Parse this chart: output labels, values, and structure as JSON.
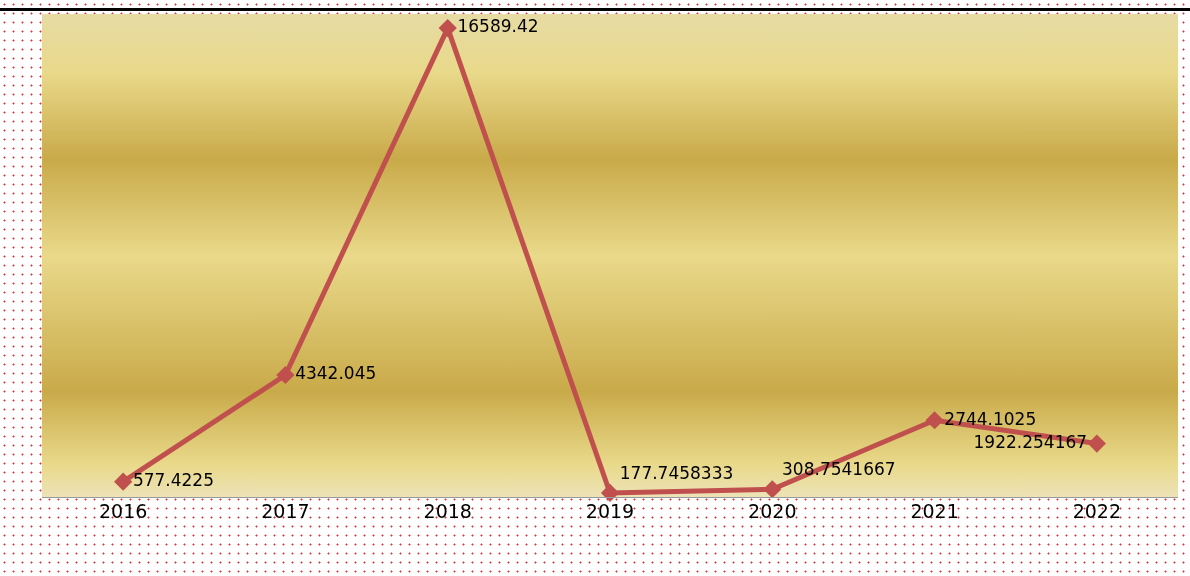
{
  "chart_data": {
    "type": "line",
    "categories": [
      "2016",
      "2017",
      "2018",
      "2019",
      "2020",
      "2021",
      "2022"
    ],
    "series": [
      {
        "color": "#c0504d",
        "values": [
          577.4225,
          4342.045,
          16589.42,
          177.7458333,
          308.7541667,
          2744.1025,
          1922.254167
        ]
      }
    ],
    "data_labels": true,
    "marker": "diamond",
    "line_style": "solid",
    "grid": false
  }
}
